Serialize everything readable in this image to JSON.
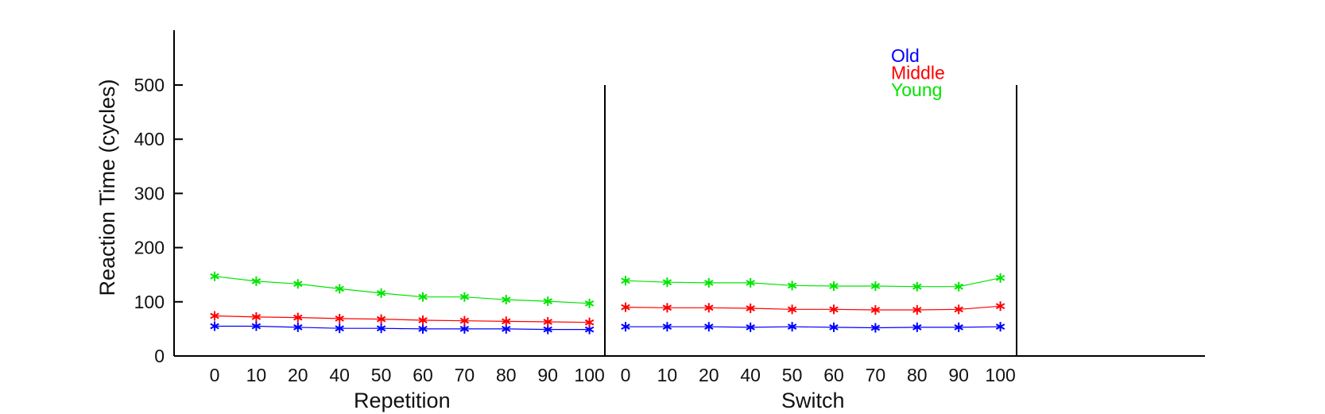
{
  "chart_data": {
    "type": "line",
    "title": "",
    "ylabel": "Reaction Time (cycles)",
    "ylim": [
      0,
      600
    ],
    "yticks": [
      0,
      100,
      200,
      300,
      400,
      500
    ],
    "grid": false,
    "legend_placement": "top-right",
    "panels": [
      {
        "xlabel": "Repetition",
        "categories": [
          "0",
          "10",
          "20",
          "40",
          "50",
          "60",
          "70",
          "80",
          "90",
          "100"
        ],
        "series": [
          {
            "name": "Old",
            "color": "#0000ff",
            "values": [
              55,
              55,
              53,
              51,
              51,
              50,
              50,
              50,
              49,
              49
            ]
          },
          {
            "name": "Middle",
            "color": "#ff0000",
            "values": [
              74,
              72,
              71,
              69,
              68,
              66,
              65,
              64,
              63,
              62
            ]
          },
          {
            "name": "Young",
            "color": "#00e600",
            "values": [
              147,
              138,
              133,
              124,
              116,
              109,
              109,
              104,
              101,
              97
            ]
          }
        ]
      },
      {
        "xlabel": "Switch",
        "categories": [
          "0",
          "10",
          "20",
          "40",
          "50",
          "60",
          "70",
          "80",
          "90",
          "100"
        ],
        "series": [
          {
            "name": "Old",
            "color": "#0000ff",
            "values": [
              54,
              54,
              54,
              53,
              54,
              53,
              52,
              53,
              53,
              54
            ]
          },
          {
            "name": "Middle",
            "color": "#ff0000",
            "values": [
              90,
              89,
              89,
              88,
              86,
              86,
              85,
              85,
              86,
              92
            ]
          },
          {
            "name": "Young",
            "color": "#00e600",
            "values": [
              139,
              136,
              135,
              135,
              130,
              129,
              129,
              128,
              128,
              144
            ]
          }
        ]
      }
    ],
    "legend": [
      {
        "label": "Old",
        "color": "#0000ff"
      },
      {
        "label": "Middle",
        "color": "#ff0000"
      },
      {
        "label": "Young",
        "color": "#00e600"
      }
    ]
  }
}
